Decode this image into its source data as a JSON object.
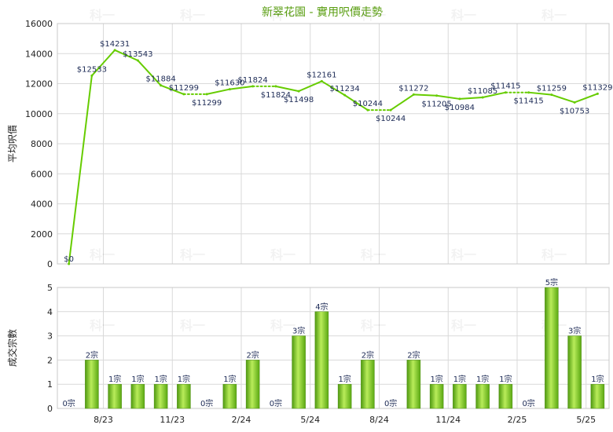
{
  "title": "新翠花園 - 實用呎價走勢",
  "watermark": "科一",
  "chart_data": [
    {
      "type": "line",
      "ylabel": "平均呎價",
      "ylim": [
        0,
        16000
      ],
      "yticks": [
        0,
        2000,
        4000,
        6000,
        8000,
        10000,
        12000,
        14000,
        16000
      ],
      "xticks": [
        "8/23",
        "11/23",
        "2/24",
        "5/24",
        "8/24",
        "11/24",
        "2/25",
        "5/25"
      ],
      "line_color": "#66cc00",
      "values": [
        0,
        12533,
        14231,
        13543,
        11884,
        11299,
        11299,
        11630,
        11824,
        11824,
        11498,
        12161,
        11234,
        10244,
        10244,
        11272,
        11205,
        10984,
        11085,
        11415,
        11415,
        11259,
        10753,
        11329
      ],
      "labels": [
        "$0",
        "$12533",
        "$14231",
        "$13543",
        "$11884",
        "$11299",
        "$11299",
        "$11630",
        "$11824",
        "$11824",
        "$11498",
        "$12161",
        "$11234",
        "$10244",
        "$10244",
        "$11272",
        "$11205",
        "$10984",
        "$11085",
        "$11415",
        "$11415",
        "$11259",
        "$10753",
        "$11329"
      ],
      "dotted_segments": [
        5,
        8,
        13,
        19
      ]
    },
    {
      "type": "bar",
      "ylabel": "成交宗數",
      "ylim": [
        0,
        5
      ],
      "yticks": [
        0,
        1,
        2,
        3,
        4,
        5
      ],
      "xticks": [
        "8/23",
        "11/23",
        "2/24",
        "5/24",
        "8/24",
        "11/24",
        "2/25",
        "5/25"
      ],
      "bar_color": "#77c11f",
      "values": [
        0,
        2,
        1,
        1,
        1,
        1,
        0,
        1,
        2,
        0,
        3,
        4,
        1,
        2,
        0,
        2,
        1,
        1,
        1,
        1,
        0,
        5,
        3,
        1
      ],
      "labels": [
        "0宗",
        "2宗",
        "1宗",
        "1宗",
        "1宗",
        "1宗",
        "0宗",
        "1宗",
        "2宗",
        "0宗",
        "3宗",
        "4宗",
        "1宗",
        "2宗",
        "0宗",
        "2宗",
        "1宗",
        "1宗",
        "1宗",
        "1宗",
        "0宗",
        "5宗",
        "3宗",
        "1宗"
      ]
    }
  ]
}
